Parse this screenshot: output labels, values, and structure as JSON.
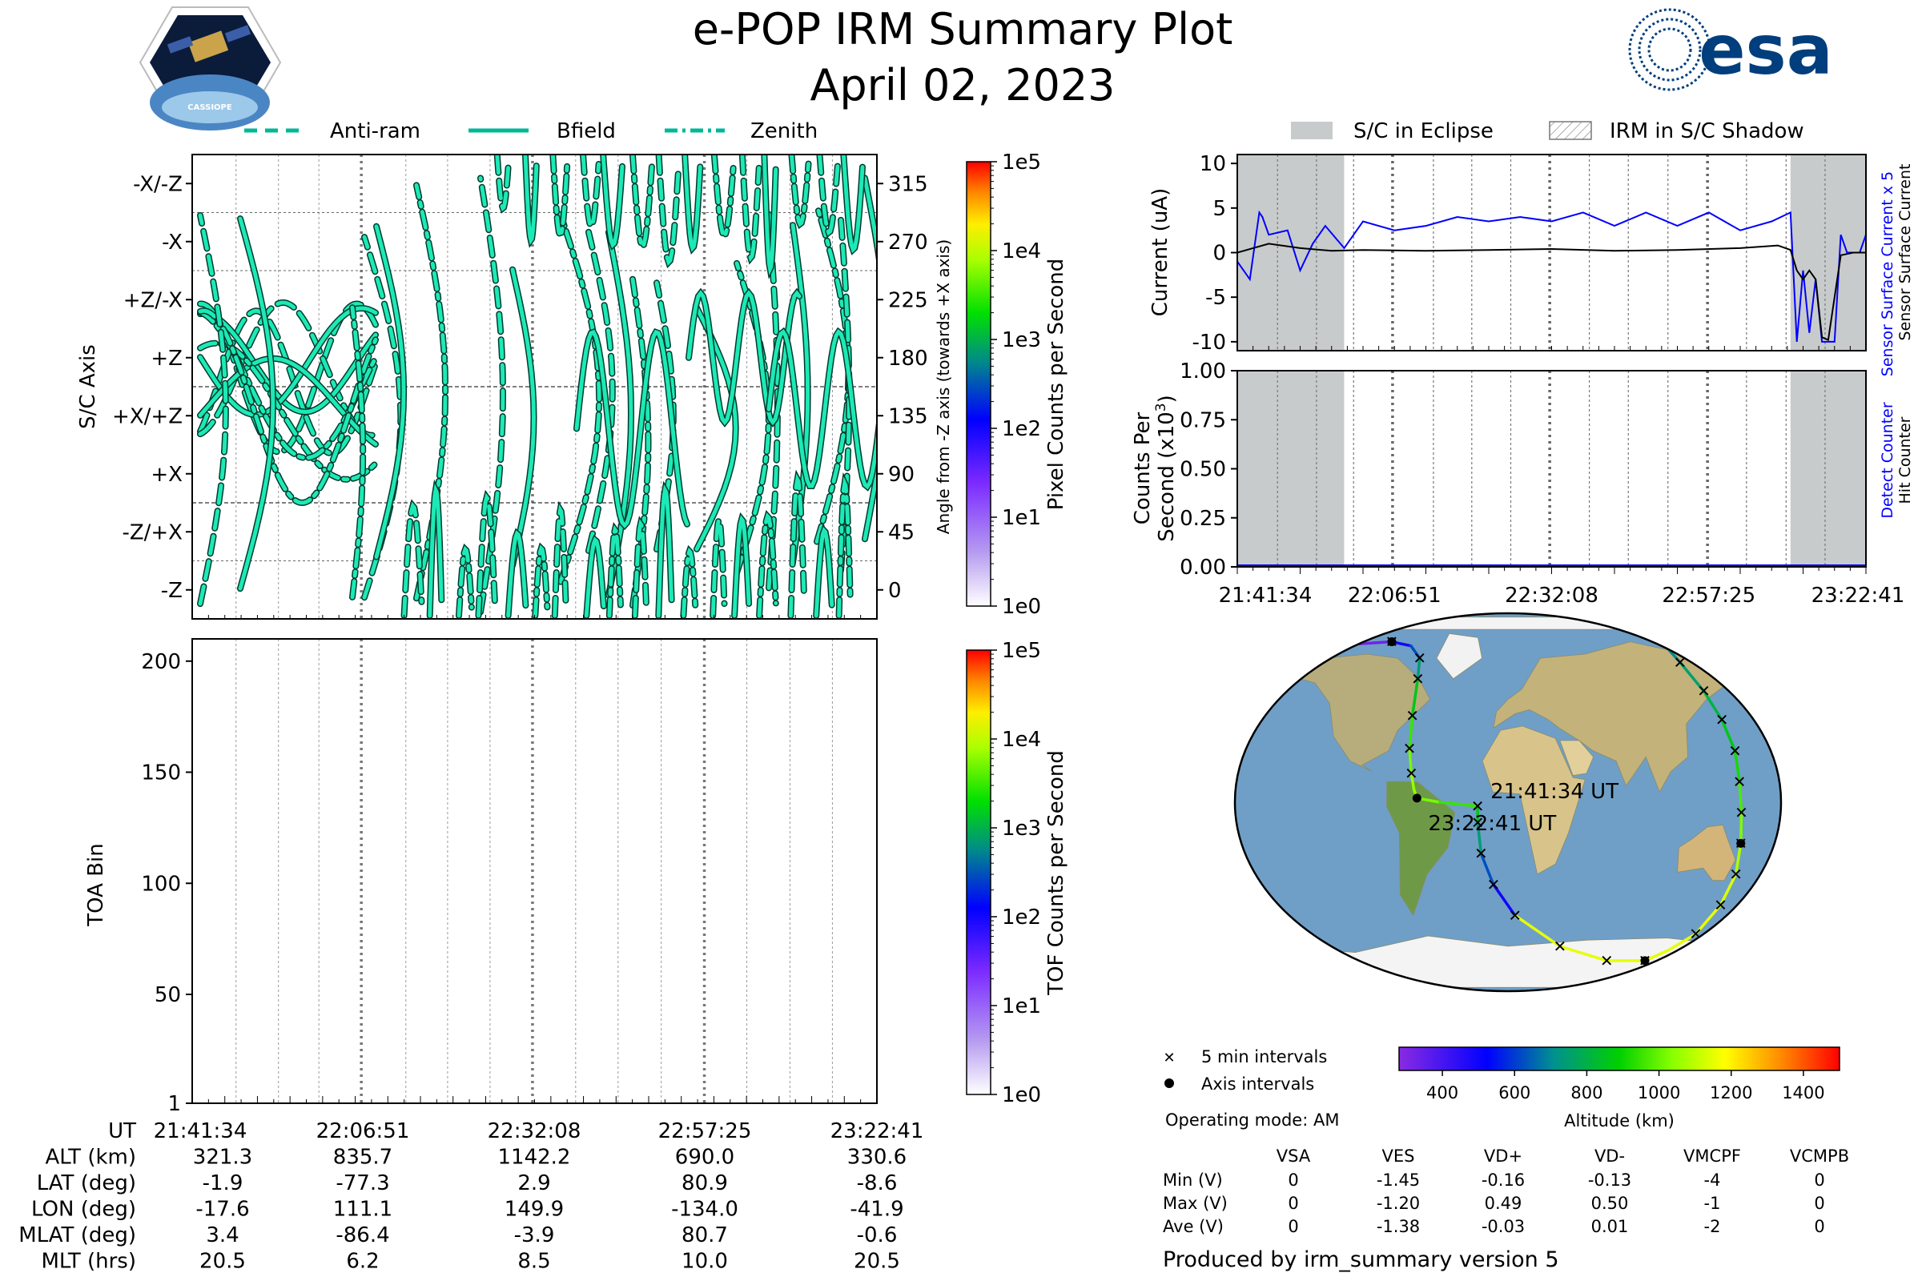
{
  "header": {
    "title": "e-POP IRM Summary Plot",
    "date": "April 02, 2023",
    "mission_logo_text": "CASSIOPE",
    "agency_logo_text": "esa"
  },
  "colors": {
    "trace": "#1de9b6",
    "current_sensor": "#0000ff",
    "current_surface": "#000000",
    "eclipse": "#c8cbcb"
  },
  "chart_data": [
    {
      "id": "sc-axis",
      "type": "line",
      "legend": [
        "Anti-ram",
        "Bfield",
        "Zenith"
      ],
      "legend_placement": "top",
      "ylabel": "S/C Axis",
      "yticks": [
        "-X/-Z",
        "-X",
        "+Z/-X",
        "+Z",
        "+X/+Z",
        "+X",
        "-Z/+X",
        "-Z"
      ],
      "y2label": "Angle from -Z axis (towards +X axis)",
      "y2ticks": [
        315,
        270,
        225,
        180,
        135,
        90,
        45,
        0
      ],
      "ylim": [
        -22.5,
        337.5
      ],
      "colorbar": {
        "label": "Pixel Counts per Second",
        "ticks": [
          "1e5",
          "1e4",
          "1e3",
          "1e2",
          "1e1",
          "1e0"
        ]
      }
    },
    {
      "id": "toa",
      "type": "heatmap",
      "ylabel": "TOA Bin",
      "yticks": [
        200,
        150,
        100,
        50,
        1
      ],
      "ylim": [
        1,
        210
      ],
      "colorbar": {
        "label": "TOF Counts per Second",
        "ticks": [
          "1e5",
          "1e4",
          "1e3",
          "1e2",
          "1e1",
          "1e0"
        ]
      }
    },
    {
      "id": "current",
      "type": "line",
      "legend": [
        "S/C in Eclipse",
        "IRM in S/C Shadow"
      ],
      "legend_placement": "top",
      "ylabel": "Current (uA)",
      "yticks": [
        10,
        5,
        0,
        -5,
        -10
      ],
      "ylim": [
        -11,
        11
      ],
      "right_labels": [
        "Sensor Surface Current x 5",
        "Sensor Surface Current"
      ],
      "series": [
        {
          "name": "Sensor Surface Current x 5",
          "x": [
            0,
            0.02,
            0.035,
            0.04,
            0.05,
            0.08,
            0.1,
            0.12,
            0.14,
            0.17,
            0.2,
            0.25,
            0.3,
            0.35,
            0.4,
            0.45,
            0.5,
            0.55,
            0.6,
            0.65,
            0.7,
            0.75,
            0.8,
            0.85,
            0.88,
            0.89,
            0.9,
            0.91,
            0.92,
            0.93,
            0.935,
            0.95,
            0.96,
            0.97,
            0.99,
            1.0
          ],
          "y": [
            -1,
            -3,
            4.5,
            4,
            2,
            2.5,
            -2,
            1,
            3,
            0.5,
            3.5,
            2.5,
            3,
            4,
            3.5,
            4,
            3.5,
            4.5,
            3,
            4.5,
            3,
            4.5,
            2.5,
            3.5,
            4.5,
            -10,
            -2,
            -9,
            -3,
            -10,
            -10,
            -10,
            2,
            0,
            0,
            2
          ]
        },
        {
          "name": "Sensor Surface Current",
          "x": [
            0,
            0.05,
            0.1,
            0.15,
            0.2,
            0.3,
            0.4,
            0.5,
            0.6,
            0.7,
            0.8,
            0.86,
            0.88,
            0.89,
            0.9,
            0.91,
            0.92,
            0.93,
            0.94,
            0.96,
            0.98,
            1.0
          ],
          "y": [
            0,
            1,
            0.5,
            0.2,
            0.3,
            0.2,
            0.3,
            0.4,
            0.2,
            0.3,
            0.5,
            0.8,
            0.3,
            -2,
            -3,
            -2,
            -3,
            -9.5,
            -9.8,
            -0.3,
            0,
            0
          ]
        }
      ],
      "eclipse_spans": [
        [
          0,
          0.17
        ],
        [
          0.88,
          1.0
        ]
      ]
    },
    {
      "id": "counts",
      "type": "line",
      "ylabel": "Counts Per Second (x10^3)",
      "yticks": [
        "1.00",
        "0.75",
        "0.50",
        "0.25",
        "0.00"
      ],
      "ylim": [
        0,
        1
      ],
      "right_labels": [
        "Detect Counter",
        "Hit Counter"
      ],
      "xticks": [
        "21:41:34",
        "22:06:51",
        "22:32:08",
        "22:57:25",
        "23:22:41"
      ],
      "series": [
        {
          "name": "Detect Counter",
          "x": [
            0,
            1
          ],
          "y": [
            0,
            0
          ]
        }
      ],
      "eclipse_spans": [
        [
          0,
          0.17
        ],
        [
          0.88,
          1.0
        ]
      ]
    },
    {
      "id": "orbit-map",
      "type": "line",
      "track": [
        [
          -120,
          77
        ],
        [
          -95,
          78
        ],
        [
          -78,
          76
        ],
        [
          -68,
          70
        ],
        [
          -66,
          60
        ],
        [
          -66,
          42
        ],
        [
          -66,
          26
        ],
        [
          -64,
          14
        ],
        [
          -62,
          6
        ],
        [
          -60,
          2
        ],
        [
          -45,
          0
        ],
        [
          -20,
          -1.9
        ],
        [
          -20,
          -10
        ],
        [
          -18,
          -25
        ],
        [
          -10,
          -40
        ],
        [
          5,
          -55
        ],
        [
          40,
          -70
        ],
        [
          80,
          -77
        ],
        [
          111,
          -77
        ],
        [
          125,
          -72
        ],
        [
          140,
          -64
        ],
        [
          150,
          -50
        ],
        [
          155,
          -35
        ],
        [
          155,
          -20
        ],
        [
          154,
          -5
        ],
        [
          153,
          10
        ],
        [
          152,
          25
        ],
        [
          147,
          40
        ],
        [
          140,
          54
        ],
        [
          131,
          68
        ],
        [
          125,
          80
        ]
      ],
      "labels": [
        "21:41:34 UT",
        "23:22:41 UT"
      ],
      "legend": [
        "5 min intervals",
        "Axis intervals"
      ],
      "colorbar": {
        "label": "Altitude (km)",
        "ticks": [
          400,
          600,
          800,
          1000,
          1200,
          1400
        ],
        "range": [
          280,
          1500
        ]
      }
    },
    {
      "id": "voltages",
      "type": "table",
      "operating_mode": "Operating mode: AM",
      "columns": [
        "",
        "VSA",
        "VES",
        "VD+",
        "VD-",
        "VMCPF",
        "VCMPB"
      ],
      "rows": [
        [
          "Min (V)",
          "0",
          "-1.45",
          "-0.16",
          "-0.13",
          "-4",
          "0"
        ],
        [
          "Max (V)",
          "0",
          "-1.20",
          "0.49",
          "0.50",
          "-1",
          "0"
        ],
        [
          "Ave (V)",
          "0",
          "-1.38",
          "-0.03",
          "0.01",
          "-2",
          "0"
        ]
      ]
    }
  ],
  "ephemeris": {
    "rows": [
      {
        "label": "UT",
        "values": [
          "21:41:34",
          "22:06:51",
          "22:32:08",
          "22:57:25",
          "23:22:41"
        ]
      },
      {
        "label": "ALT (km)",
        "values": [
          "321.3",
          "835.7",
          "1142.2",
          "690.0",
          "330.6"
        ]
      },
      {
        "label": "LAT (deg)",
        "values": [
          "-1.9",
          "-77.3",
          "2.9",
          "80.9",
          "-8.6"
        ]
      },
      {
        "label": "LON (deg)",
        "values": [
          "-17.6",
          "111.1",
          "149.9",
          "-134.0",
          "-41.9"
        ]
      },
      {
        "label": "MLAT (deg)",
        "values": [
          "3.4",
          "-86.4",
          "-3.9",
          "80.7",
          "-0.6"
        ]
      },
      {
        "label": "MLT (hrs)",
        "values": [
          "20.5",
          "6.2",
          "8.5",
          "10.0",
          "20.5"
        ]
      }
    ]
  },
  "footer": {
    "produced_by": "Produced by irm_summary version 5"
  }
}
